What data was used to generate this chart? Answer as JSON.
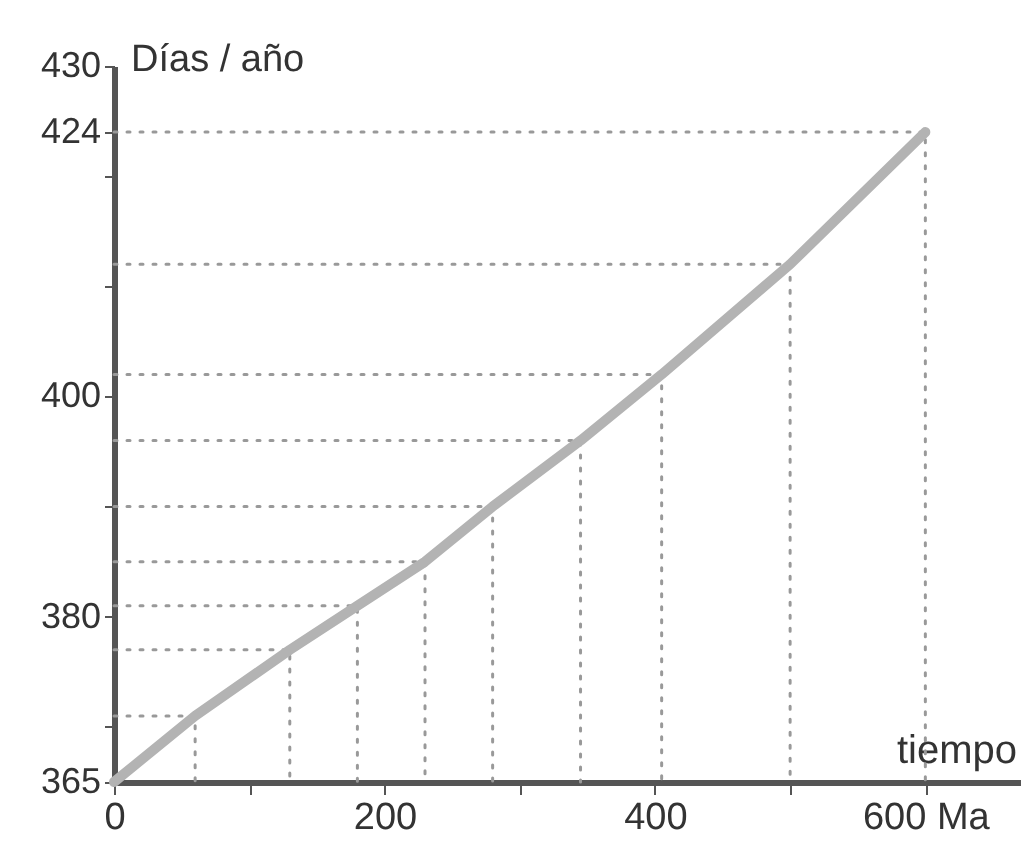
{
  "chart_data": {
    "type": "line",
    "xlabel": "tiempo",
    "ylabel": "Días / año",
    "x": [
      0,
      60,
      130,
      180,
      230,
      280,
      345,
      405,
      500,
      600
    ],
    "series": [
      {
        "color": "#b3b3b3",
        "values": [
          365,
          371,
          377,
          381,
          385,
          390,
          396,
          402,
          412,
          424
        ]
      },
      {
        "color": "#999999",
        "line_style": "dotted",
        "x": [
          0,
          60,
          60
        ],
        "values": [
          371,
          371,
          365
        ]
      },
      {
        "color": "#999999",
        "line_style": "dotted",
        "x": [
          0,
          130,
          130
        ],
        "values": [
          377,
          377,
          365
        ]
      },
      {
        "color": "#999999",
        "line_style": "dotted",
        "x": [
          0,
          180,
          180
        ],
        "values": [
          381,
          381,
          365
        ]
      },
      {
        "color": "#999999",
        "line_style": "dotted",
        "x": [
          0,
          230,
          230
        ],
        "values": [
          385,
          385,
          365
        ]
      },
      {
        "color": "#999999",
        "line_style": "dotted",
        "x": [
          0,
          280,
          280
        ],
        "values": [
          390,
          390,
          365
        ]
      },
      {
        "color": "#999999",
        "line_style": "dotted",
        "x": [
          0,
          345,
          345
        ],
        "values": [
          396,
          396,
          365
        ]
      },
      {
        "color": "#999999",
        "line_style": "dotted",
        "x": [
          0,
          405,
          405
        ],
        "values": [
          402,
          402,
          365
        ]
      },
      {
        "color": "#999999",
        "line_style": "dotted",
        "x": [
          0,
          500,
          500
        ],
        "values": [
          412,
          412,
          365
        ]
      },
      {
        "color": "#999999",
        "line_style": "dotted",
        "x": [
          0,
          600,
          600
        ],
        "values": [
          424,
          424,
          365
        ]
      }
    ],
    "xlim": [
      0,
      670
    ],
    "ylim": [
      365,
      430
    ],
    "xticks": [
      0,
      {
        "value": 100,
        "label": null
      },
      200,
      {
        "value": 300,
        "label": null
      },
      400,
      {
        "value": 500,
        "label": null
      },
      {
        "value": 600,
        "label": "600 Ma"
      }
    ],
    "yticks": [
      365,
      {
        "value": 370,
        "label": null
      },
      380,
      {
        "value": 390,
        "label": null
      },
      400,
      {
        "value": 410,
        "label": null
      },
      {
        "value": 420,
        "label": null
      },
      424,
      430
    ],
    "marker": "none",
    "line_style": "solid"
  }
}
